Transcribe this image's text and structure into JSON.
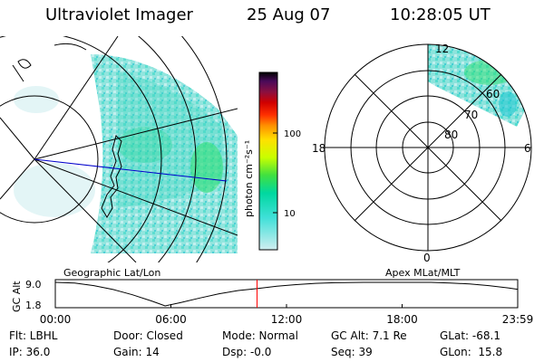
{
  "header": {
    "instrument": "Ultraviolet Imager",
    "date": "25 Aug 07",
    "time": "10:28:05 UT"
  },
  "colorbar": {
    "label": "photon cm⁻²s⁻¹",
    "ticks": [
      "100",
      "10"
    ],
    "colors": [
      "#000000",
      "#2a0040",
      "#5a0a5a",
      "#8a1040",
      "#b8000a",
      "#e00000",
      "#ff5000",
      "#ff9000",
      "#ffd000",
      "#d8ff00",
      "#80ff00",
      "#20e040",
      "#00d8a0",
      "#40e0d8",
      "#90e8e8",
      "#d0eef0"
    ]
  },
  "maps": {
    "geo_caption": "Geographic Lat/Lon",
    "mlt_caption": "Apex MLat/MLT",
    "mlt_labels": {
      "top": "12",
      "left": "18",
      "right": "6",
      "bottom": "0"
    },
    "mlat_labels": [
      "60",
      "70",
      "80"
    ]
  },
  "chart_data": {
    "type": "line",
    "title": "GC Alt",
    "ylabel": "GC Alt",
    "yticks": [
      "9.0",
      "1.8"
    ],
    "ylim": [
      1.8,
      9.0
    ],
    "xlim": [
      0,
      24
    ],
    "xticks": [
      "00:00",
      "06:00",
      "12:00",
      "18:00",
      "23:59"
    ],
    "x": [
      0,
      1,
      2,
      3,
      4,
      5,
      5.7,
      6.5,
      7.5,
      8.5,
      9.5,
      10.47,
      11.5,
      12.5,
      13.5,
      14.5,
      16,
      18,
      19.5,
      20.5,
      21.5,
      22.5,
      23.5,
      23.98
    ],
    "y": [
      9.0,
      8.8,
      8.0,
      6.8,
      5.2,
      3.3,
      1.8,
      2.8,
      4.2,
      5.5,
      6.5,
      7.1,
      7.8,
      8.3,
      8.7,
      8.9,
      9.0,
      9.0,
      9.0,
      8.8,
      8.5,
      8.0,
      7.3,
      6.9
    ],
    "marker_x": 10.47,
    "marker_color": "#ff0000"
  },
  "info": {
    "flt": "Flt: LBHL",
    "door": "Door: Closed",
    "mode": "Mode: Normal",
    "gc_alt": "GC Alt: 7.1 Re",
    "glat": "GLat: -68.1",
    "ip": "IP: 36.0",
    "gain": "Gain: 14",
    "dsp": "Dsp:    -0.0",
    "seq": "Seq: 39",
    "glon": "GLon:  15.8"
  }
}
